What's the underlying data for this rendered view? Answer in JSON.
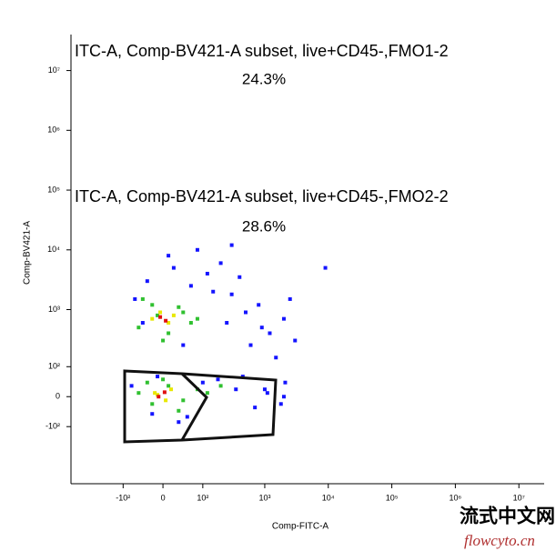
{
  "chart_data": {
    "type": "scatter",
    "x_label": "Comp-FITC-A",
    "y_label": "Comp-BV421-A",
    "xlim": [
      -700,
      25000000
    ],
    "ylim": [
      -1000,
      40000000
    ],
    "xticks": [
      {
        "value": -100,
        "label": "-10²"
      },
      0,
      {
        "value": 100,
        "label": "10²"
      },
      {
        "value": 1000,
        "label": "10³"
      },
      {
        "value": 10000,
        "label": "10⁴"
      },
      {
        "value": 100000,
        "label": "10⁵"
      },
      {
        "value": 1000000,
        "label": "10⁶"
      },
      {
        "value": 10000000,
        "label": "10⁷"
      }
    ],
    "yticks": [
      {
        "value": -100,
        "label": "-10²"
      },
      0,
      {
        "value": 100,
        "label": "10²"
      },
      {
        "value": 1000,
        "label": "10³"
      },
      {
        "value": 10000,
        "label": "10⁴"
      },
      {
        "value": 100000,
        "label": "10⁵"
      },
      {
        "value": 1000000,
        "label": "10⁶"
      },
      {
        "value": 10000000,
        "label": "10⁷"
      }
    ],
    "annotations": [
      {
        "text": "ITC-A, Comp-BV421-A subset, live+CD45-,FMO1-2",
        "percent": "24.3%"
      },
      {
        "text": "ITC-A, Comp-BV421-A subset, live+CD45-,FMO2-2",
        "percent": "28.6%"
      }
    ],
    "series": [
      {
        "color": "#1414ff",
        "x": [
          -60,
          -30,
          20,
          60,
          120,
          200,
          300,
          500,
          800,
          1200,
          2000,
          3000,
          -40,
          40,
          150,
          400,
          900,
          1500,
          2500,
          10,
          80,
          250,
          600,
          -20,
          30,
          100,
          350,
          700,
          1100,
          -70,
          -10,
          50,
          180,
          450,
          1000,
          1800,
          2100,
          2000,
          9000,
          300
        ],
        "values": [
          1500,
          3000,
          5000,
          2500,
          4000,
          6000,
          1800,
          900,
          1200,
          400,
          700,
          300,
          600,
          250,
          2000,
          3500,
          500,
          150,
          1500,
          8000,
          10000,
          600,
          250,
          -50,
          -80,
          40,
          20,
          -30,
          10,
          30,
          60,
          -60,
          50,
          60,
          20,
          -20,
          40,
          0,
          5000,
          12000
        ]
      },
      {
        "color": "#30c030",
        "x": [
          -50,
          -20,
          10,
          40,
          80,
          -40,
          0,
          30,
          -10,
          60,
          -50,
          -20,
          10,
          40,
          80,
          -30,
          0,
          30,
          120,
          200
        ],
        "values": [
          500,
          1200,
          400,
          900,
          700,
          1500,
          300,
          1100,
          800,
          600,
          10,
          -20,
          30,
          -10,
          20,
          40,
          50,
          -40,
          10,
          30
        ]
      },
      {
        "color": "#e8e800",
        "x": [
          -20,
          10,
          -5,
          20,
          -15,
          5,
          15,
          -10
        ],
        "values": [
          700,
          600,
          900,
          800,
          10,
          -10,
          20,
          5
        ]
      },
      {
        "color": "#e01010",
        "x": [
          -5,
          5,
          -8,
          3
        ],
        "values": [
          750,
          650,
          0,
          12
        ]
      }
    ]
  },
  "watermark": {
    "title": "流式中文网",
    "url": "flowcyto.cn"
  }
}
